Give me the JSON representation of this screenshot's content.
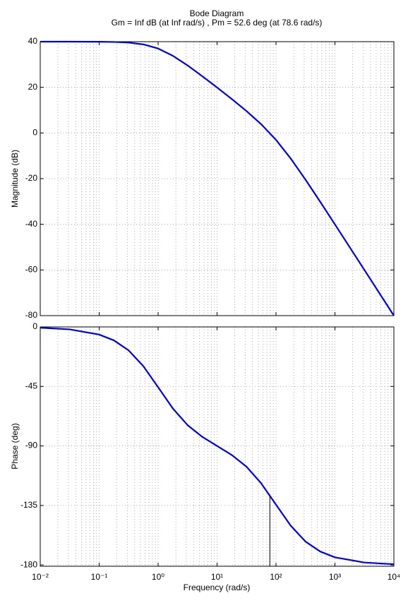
{
  "chart_data": [
    {
      "type": "line",
      "title": "Bode Diagram",
      "subtitle": "Gm = Inf dB (at Inf rad/s) ,  Pm = 52.6 deg (at 78.6 rad/s)",
      "ylabel": "Magnitude (dB)",
      "log_x": true,
      "grid": true,
      "minor_grid": true,
      "x": [
        0.01,
        0.0316,
        0.1,
        0.178,
        0.316,
        0.562,
        1,
        1.778,
        3.162,
        5.623,
        10,
        17.78,
        31.62,
        56.23,
        100,
        177.8,
        316.2,
        562.3,
        1000,
        3162,
        10000
      ],
      "series": [
        {
          "color": "#0000e6",
          "values": [
            40,
            40,
            39.96,
            39.87,
            39.59,
            38.81,
            36.99,
            33.81,
            29.59,
            24.86,
            19.92,
            14.86,
            9.59,
            3.81,
            -3.01,
            -11.19,
            -20.41,
            -30.13,
            -40.04,
            -60,
            -80
          ]
        }
      ],
      "xlim": [
        0.01,
        10000
      ],
      "ylim": [
        -80,
        40
      ],
      "yticks": [
        40,
        20,
        0,
        -20,
        -40,
        -60,
        -80
      ]
    },
    {
      "type": "line",
      "ylabel": "Phase (deg)",
      "xlabel": "Frequency  (rad/s)",
      "log_x": true,
      "grid": true,
      "minor_grid": true,
      "x": [
        0.01,
        0.0316,
        0.1,
        0.178,
        0.316,
        0.562,
        1,
        1.778,
        3.162,
        5.623,
        10,
        17.78,
        31.62,
        56.23,
        100,
        177.8,
        316.2,
        562.3,
        1000,
        3162,
        10000
      ],
      "series": [
        {
          "color": "#0000e6",
          "values": [
            -0.58,
            -1.83,
            -5.77,
            -10.18,
            -17.73,
            -29.68,
            -45.57,
            -61.66,
            -74.26,
            -83.14,
            -90,
            -96.86,
            -105.74,
            -118.34,
            -134.43,
            -150.32,
            -162.27,
            -169.82,
            -174.23,
            -178.17,
            -179.42
          ]
        }
      ],
      "marker_x": 78.6,
      "marker_y": -127.4,
      "xlim": [
        0.01,
        10000
      ],
      "ylim": [
        -181,
        0
      ],
      "yticks": [
        0,
        -45,
        -90,
        -135,
        -180
      ],
      "xticks": [
        {
          "value": 0.01,
          "label": "10⁻²"
        },
        {
          "value": 0.1,
          "label": "10⁻¹"
        },
        {
          "value": 1,
          "label": "10⁰"
        },
        {
          "value": 10,
          "label": "10¹"
        },
        {
          "value": 100,
          "label": "10²"
        },
        {
          "value": 1000,
          "label": "10³"
        },
        {
          "value": 10000,
          "label": "10⁴"
        }
      ]
    }
  ]
}
